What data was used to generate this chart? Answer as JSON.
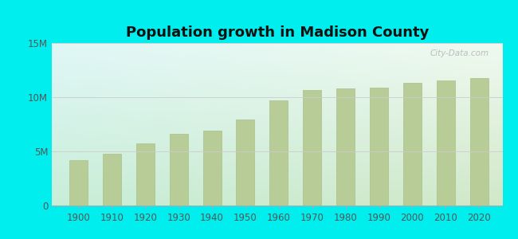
{
  "title": "Population growth in Madison County",
  "background_color": "#00EEEE",
  "plot_bg_top_left": "#e8f8f8",
  "plot_bg_bottom_right": "#d0ecd8",
  "bar_color": "#b8cc98",
  "bar_edge_color": "#aabf8a",
  "years": [
    1900,
    1910,
    1920,
    1930,
    1940,
    1950,
    1960,
    1970,
    1980,
    1990,
    2000,
    2010,
    2020
  ],
  "ohio_population": [
    4157545,
    4767121,
    5759394,
    6646697,
    6907612,
    7946627,
    9706397,
    10652017,
    10797630,
    10847115,
    11353140,
    11536504,
    11799448
  ],
  "ylim": [
    0,
    15000000
  ],
  "yticks": [
    0,
    5000000,
    10000000,
    15000000
  ],
  "ytick_labels": [
    "0",
    "5M",
    "10M",
    "15M"
  ],
  "legend_county_color": "#c8a8d9",
  "legend_ohio_color": "#c8d9a8",
  "watermark": "City-Data.com",
  "title_fontsize": 13,
  "tick_fontsize": 8.5,
  "xlim_left": 1892,
  "xlim_right": 2027
}
